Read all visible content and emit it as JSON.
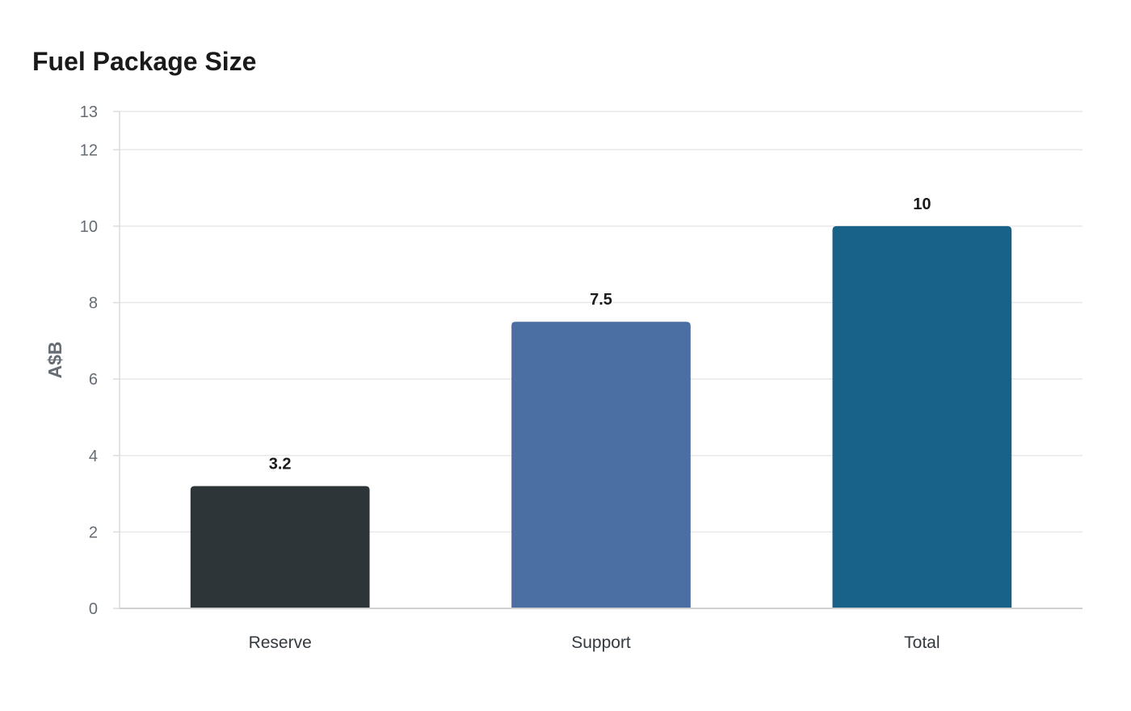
{
  "chart_data": {
    "type": "bar",
    "title": "Fuel Package Size",
    "xlabel": "",
    "ylabel": "A$B",
    "categories": [
      "Reserve",
      "Support",
      "Total"
    ],
    "values": [
      3.2,
      7.5,
      10
    ],
    "value_labels": [
      "3.2",
      "7.5",
      "10"
    ],
    "colors": [
      "#2e3538",
      "#4b6fa3",
      "#186187"
    ],
    "ylim": [
      0,
      13
    ],
    "yticks": [
      0,
      2,
      4,
      6,
      8,
      10,
      12,
      13
    ],
    "ytick_labels": [
      "0",
      "2",
      "4",
      "6",
      "8",
      "10",
      "12",
      "13"
    ],
    "grid": true,
    "legend": "none"
  }
}
